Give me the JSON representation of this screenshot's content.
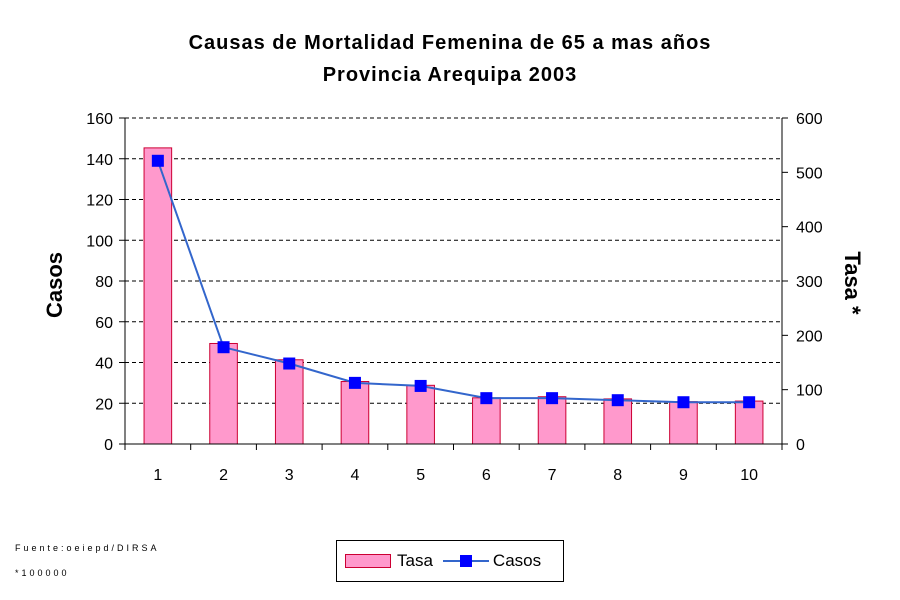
{
  "chart_data": {
    "type": "bar",
    "title": "Causas de Mortalidad Femenina de 65 a mas años",
    "subtitle": "Provincia Arequipa 2003",
    "categories": [
      "1",
      "2",
      "3",
      "4",
      "5",
      "6",
      "7",
      "8",
      "9",
      "10"
    ],
    "ylabel": "Casos",
    "y2label": "Tasa *",
    "ylim": [
      0,
      160
    ],
    "y2lim": [
      0,
      600
    ],
    "yticks": [
      "0",
      "20",
      "40",
      "60",
      "80",
      "100",
      "120",
      "140",
      "160"
    ],
    "y2ticks": [
      "0",
      "100",
      "200",
      "300",
      "400",
      "500",
      "600"
    ],
    "grid": true,
    "legend_position": "bottom",
    "series": [
      {
        "name": "Tasa",
        "type": "bar",
        "axis": "right",
        "color": "#ff99cc",
        "edge": "#cc0033",
        "values": [
          545,
          185,
          155,
          115,
          108,
          85,
          87,
          83,
          78,
          79
        ]
      },
      {
        "name": "Casos",
        "type": "line",
        "axis": "left",
        "color": "#3366cc",
        "marker": "#0000ff",
        "values": [
          139,
          47.5,
          39.5,
          30,
          28.5,
          22.5,
          22.5,
          21.5,
          20.5,
          20.5
        ]
      }
    ]
  },
  "notes": {
    "source": "Fuente:oeiepd/DIRSA",
    "rate_note": "*100000"
  }
}
